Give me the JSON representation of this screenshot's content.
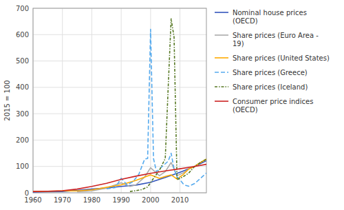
{
  "chart_data": {
    "type": "line",
    "y_label": "2015 = 100",
    "xlim": [
      1960,
      2019
    ],
    "ylim": [
      0,
      700
    ],
    "xticks": [
      1960,
      1970,
      1980,
      1990,
      2000,
      2010
    ],
    "yticks": [
      0,
      100,
      200,
      300,
      400,
      500,
      600,
      700
    ],
    "grid": true,
    "legend": "right",
    "series": [
      {
        "name": "Nominal house prices\n(OECD)",
        "color": "#3355bb",
        "line_style": "solid",
        "x": [
          1960,
          1965,
          1970,
          1975,
          1980,
          1985,
          1990,
          1995,
          2000,
          2005,
          2010,
          2015,
          2019
        ],
        "values": [
          3,
          4,
          5,
          9,
          14,
          18,
          24,
          29,
          40,
          58,
          78,
          100,
          122
        ]
      },
      {
        "name": "Share prices (Euro Area -\n19)",
        "color": "#aaaaaa",
        "line_style": "solid",
        "x": [
          1975,
          1980,
          1985,
          1990,
          1993,
          1995,
          1998,
          2000,
          2003,
          2005,
          2007,
          2009,
          2011,
          2013,
          2015,
          2017,
          2019
        ],
        "values": [
          4,
          7,
          18,
          38,
          24,
          30,
          60,
          95,
          65,
          80,
          115,
          65,
          75,
          90,
          100,
          115,
          125
        ]
      },
      {
        "name": "Share prices (United States)",
        "color": "#ffaa00",
        "line_style": "solid",
        "x": [
          1960,
          1965,
          1970,
          1975,
          1980,
          1985,
          1990,
          1995,
          2000,
          2003,
          2005,
          2007,
          2009,
          2011,
          2013,
          2015,
          2017,
          2019
        ],
        "values": [
          5,
          6,
          7,
          7,
          11,
          21,
          30,
          47,
          68,
          55,
          62,
          68,
          52,
          68,
          90,
          100,
          115,
          128
        ]
      },
      {
        "name": "Share prices (Greece)",
        "color": "#55aaee",
        "line_style": "dashed",
        "x": [
          1985,
          1988,
          1990,
          1992,
          1994,
          1996,
          1998,
          1999,
          2000,
          2001,
          2002,
          2004,
          2006,
          2007,
          2008,
          2009,
          2010,
          2011,
          2012,
          2013,
          2014,
          2015,
          2016,
          2017,
          2018,
          2019
        ],
        "values": [
          15,
          20,
          55,
          30,
          42,
          70,
          128,
          130,
          620,
          130,
          80,
          100,
          120,
          150,
          90,
          60,
          50,
          35,
          28,
          25,
          30,
          35,
          45,
          55,
          65,
          75
        ]
      },
      {
        "name": "Share prices (Iceland)",
        "color": "#557722",
        "line_style": "dashdot",
        "x": [
          1993,
          1995,
          1997,
          1999,
          2001,
          2003,
          2005,
          2006,
          2007,
          2008,
          2009,
          2010,
          2011,
          2013,
          2015,
          2017,
          2019
        ],
        "values": [
          5,
          8,
          12,
          22,
          55,
          85,
          130,
          400,
          660,
          590,
          50,
          55,
          60,
          75,
          100,
          115,
          128
        ]
      },
      {
        "name": "Consumer price indices\n(OECD)",
        "color": "#cc2222",
        "line_style": "solid",
        "x": [
          1960,
          1965,
          1970,
          1975,
          1980,
          1985,
          1990,
          1995,
          2000,
          2005,
          2010,
          2015,
          2019
        ],
        "values": [
          5,
          6,
          8,
          14,
          24,
          36,
          51,
          63,
          74,
          83,
          91,
          100,
          108
        ]
      }
    ]
  }
}
